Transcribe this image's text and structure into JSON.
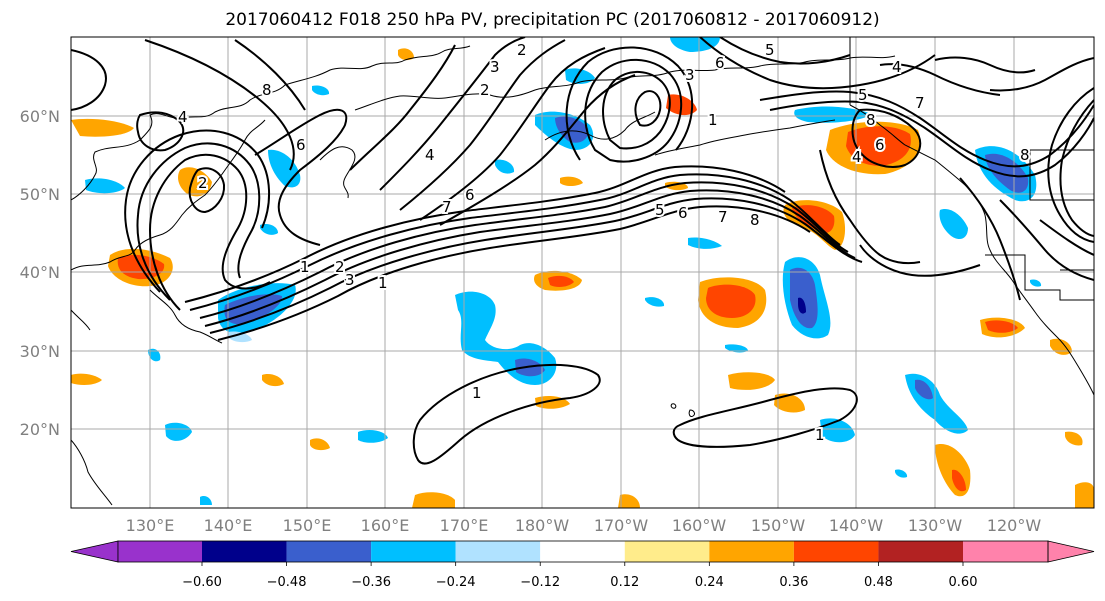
{
  "title": "2017060412 F018 250 hPa PV, precipitation PC (2017060812 - 2017060912)",
  "lat_labels": [
    "60°N",
    "50°N",
    "40°N",
    "30°N",
    "20°N"
  ],
  "lon_labels": [
    "130°E",
    "140°E",
    "150°E",
    "160°E",
    "170°E",
    "180°W",
    "170°W",
    "160°W",
    "150°W",
    "140°W",
    "130°W",
    "120°W"
  ],
  "contour_labels": [
    "8",
    "4",
    "6",
    "2",
    "3",
    "2",
    "2",
    "4",
    "7",
    "6",
    "1",
    "3",
    "2",
    "1",
    "3",
    "1",
    "5",
    "6",
    "7",
    "8",
    "4",
    "6",
    "8",
    "5",
    "7",
    "5",
    "6",
    "8",
    "1",
    "1",
    "4"
  ],
  "colorbar": {
    "ticks": [
      "−0.60",
      "−0.48",
      "−0.36",
      "−0.24",
      "−0.12",
      "0.12",
      "0.24",
      "0.36",
      "0.48",
      "0.60"
    ],
    "colors": [
      "#9932CC",
      "#00008B",
      "#3A5FCD",
      "#00BFFF",
      "#B0E2FF",
      "#FFFFFF",
      "#FFEC8B",
      "#FFA500",
      "#FF4500",
      "#B22222",
      "#FF82AB"
    ]
  }
}
